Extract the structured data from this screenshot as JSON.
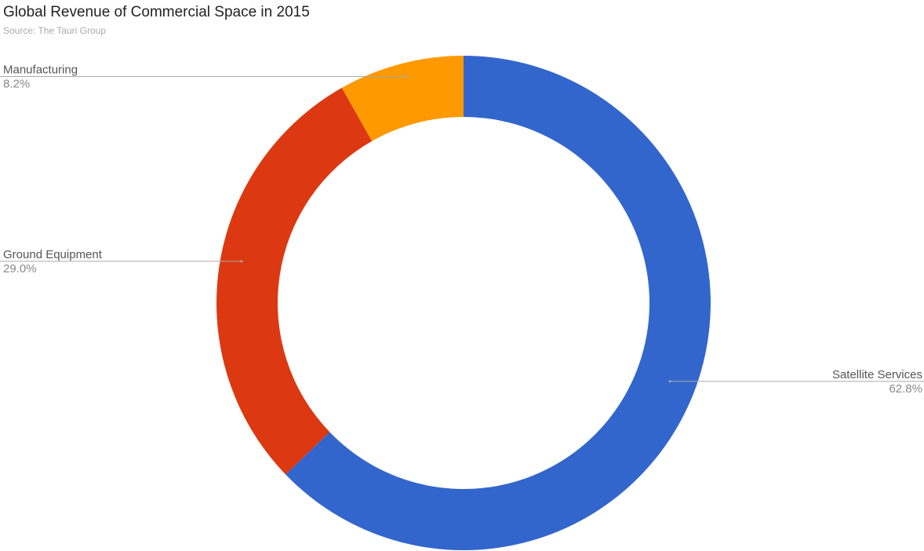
{
  "chart_data": {
    "type": "donut",
    "title": "Global Revenue of Commercial Space in 2015",
    "subtitle": "Source: The Tauri Group",
    "categories": [
      "Satellite Services",
      "Ground Equipment",
      "Manufacturing"
    ],
    "values": [
      62.8,
      29.0,
      8.2
    ],
    "value_labels": [
      "62.8%",
      "29.0%",
      "8.2%"
    ],
    "colors": [
      "#3366cc",
      "#dc3912",
      "#ff9900"
    ]
  }
}
